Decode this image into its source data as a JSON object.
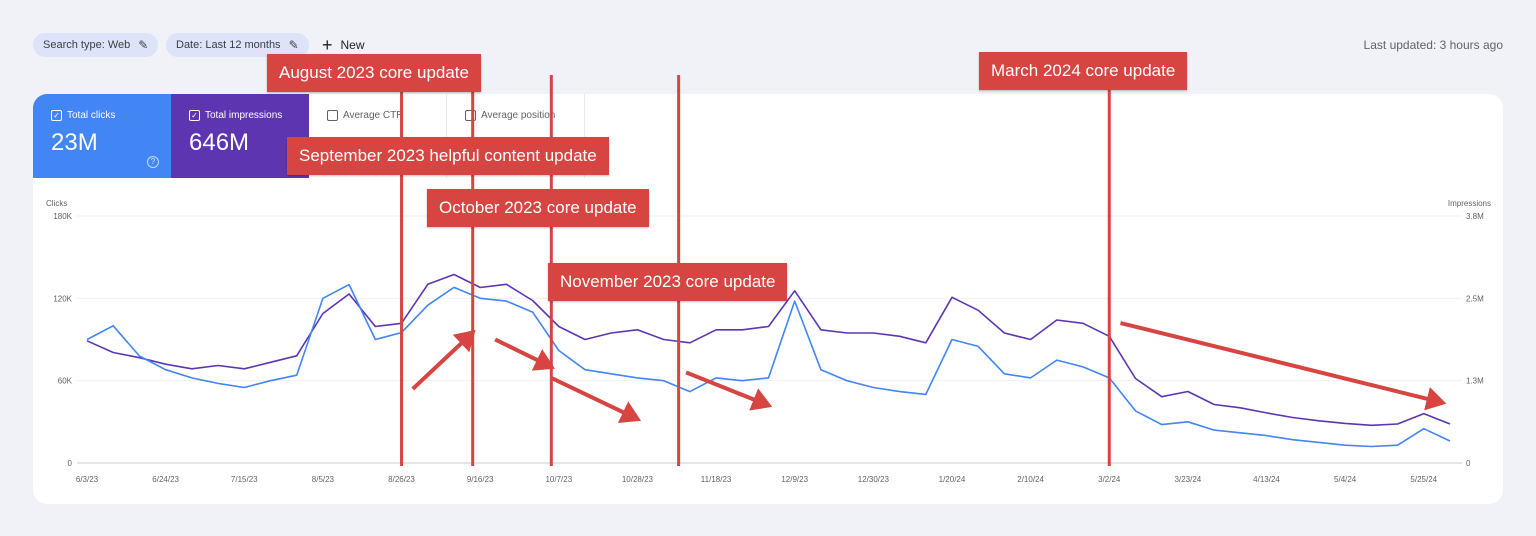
{
  "filters": {
    "search_type": "Search type: Web",
    "date": "Date: Last 12 months",
    "new_label": "New"
  },
  "last_updated": "Last updated: 3 hours ago",
  "metrics": {
    "clicks": {
      "label": "Total clicks",
      "value": "23M",
      "checked": true
    },
    "impressions": {
      "label": "Total impressions",
      "value": "646M",
      "checked": true
    },
    "ctr": {
      "label": "Average CTR",
      "checked": false
    },
    "position": {
      "label": "Average position",
      "checked": false
    }
  },
  "colors": {
    "clicks": "#4285f4",
    "impressions": "#5e35b1",
    "annotation": "#d64541"
  },
  "annotations": [
    {
      "label": "August 2023 core update",
      "date": "8/26/23"
    },
    {
      "label": "September 2023 helpful content update",
      "date": "9/14/23"
    },
    {
      "label": "October 2023 core update",
      "date": "10/5/23"
    },
    {
      "label": "November 2023 core update",
      "date": "11/8/23"
    },
    {
      "label": "March 2024 core update",
      "date": "3/2/24"
    }
  ],
  "chart_data": {
    "type": "line",
    "x_start": "6/3/23",
    "x_end": "6/1/24",
    "xlabel": "",
    "x_ticks": [
      "6/3/23",
      "6/24/23",
      "7/15/23",
      "8/5/23",
      "8/26/23",
      "9/16/23",
      "10/7/23",
      "10/28/23",
      "11/18/23",
      "12/9/23",
      "12/30/23",
      "1/20/24",
      "2/10/24",
      "3/2/24",
      "3/23/24",
      "4/13/24",
      "5/4/24",
      "5/25/24"
    ],
    "y_left": {
      "label": "Clicks",
      "ticks": [
        "0",
        "60K",
        "120K",
        "180K"
      ],
      "ylim": [
        0,
        180000
      ]
    },
    "y_right": {
      "label": "Impressions",
      "ticks": [
        "0",
        "1.3M",
        "2.5M",
        "3.8M"
      ],
      "ylim": [
        0,
        3800000
      ]
    },
    "grid": "horizontal",
    "series": [
      {
        "name": "Impressions",
        "axis": "right",
        "points": [
          [
            "6/3/23",
            1880000
          ],
          [
            "6/10/23",
            1700000
          ],
          [
            "6/17/23",
            1620000
          ],
          [
            "6/24/23",
            1520000
          ],
          [
            "7/1/23",
            1450000
          ],
          [
            "7/8/23",
            1500000
          ],
          [
            "7/15/23",
            1450000
          ],
          [
            "7/22/23",
            1550000
          ],
          [
            "7/29/23",
            1650000
          ],
          [
            "8/5/23",
            2300000
          ],
          [
            "8/12/23",
            2600000
          ],
          [
            "8/19/23",
            2100000
          ],
          [
            "8/26/23",
            2150000
          ],
          [
            "9/2/23",
            2750000
          ],
          [
            "9/9/23",
            2900000
          ],
          [
            "9/16/23",
            2700000
          ],
          [
            "9/23/23",
            2750000
          ],
          [
            "9/30/23",
            2500000
          ],
          [
            "10/7/23",
            2100000
          ],
          [
            "10/14/23",
            1900000
          ],
          [
            "10/21/23",
            2000000
          ],
          [
            "10/28/23",
            2050000
          ],
          [
            "11/4/23",
            1900000
          ],
          [
            "11/11/23",
            1850000
          ],
          [
            "11/18/23",
            2050000
          ],
          [
            "11/25/23",
            2050000
          ],
          [
            "12/2/23",
            2100000
          ],
          [
            "12/9/23",
            2650000
          ],
          [
            "12/16/23",
            2050000
          ],
          [
            "12/23/23",
            2000000
          ],
          [
            "12/30/23",
            2000000
          ],
          [
            "1/6/24",
            1950000
          ],
          [
            "1/13/24",
            1850000
          ],
          [
            "1/20/24",
            2550000
          ],
          [
            "1/27/24",
            2350000
          ],
          [
            "2/3/24",
            2000000
          ],
          [
            "2/10/24",
            1900000
          ],
          [
            "2/17/24",
            2200000
          ],
          [
            "2/24/24",
            2150000
          ],
          [
            "3/2/24",
            1950000
          ],
          [
            "3/9/24",
            1300000
          ],
          [
            "3/16/24",
            1020000
          ],
          [
            "3/23/24",
            1100000
          ],
          [
            "3/30/24",
            900000
          ],
          [
            "4/6/24",
            850000
          ],
          [
            "4/13/24",
            770000
          ],
          [
            "4/20/24",
            700000
          ],
          [
            "4/27/24",
            650000
          ],
          [
            "5/4/24",
            610000
          ],
          [
            "5/11/24",
            580000
          ],
          [
            "5/18/24",
            600000
          ],
          [
            "5/25/24",
            760000
          ],
          [
            "6/1/24",
            600000
          ]
        ]
      },
      {
        "name": "Clicks",
        "axis": "left",
        "points": [
          [
            "6/3/23",
            90000
          ],
          [
            "6/10/23",
            100000
          ],
          [
            "6/17/23",
            78000
          ],
          [
            "6/24/23",
            68000
          ],
          [
            "7/1/23",
            62000
          ],
          [
            "7/8/23",
            58000
          ],
          [
            "7/15/23",
            55000
          ],
          [
            "7/22/23",
            60000
          ],
          [
            "7/29/23",
            64000
          ],
          [
            "8/5/23",
            120000
          ],
          [
            "8/12/23",
            130000
          ],
          [
            "8/19/23",
            90000
          ],
          [
            "8/26/23",
            95000
          ],
          [
            "9/2/23",
            115000
          ],
          [
            "9/9/23",
            128000
          ],
          [
            "9/16/23",
            120000
          ],
          [
            "9/23/23",
            118000
          ],
          [
            "9/30/23",
            110000
          ],
          [
            "10/7/23",
            82000
          ],
          [
            "10/14/23",
            68000
          ],
          [
            "10/21/23",
            65000
          ],
          [
            "10/28/23",
            62000
          ],
          [
            "11/4/23",
            60000
          ],
          [
            "11/11/23",
            52000
          ],
          [
            "11/18/23",
            62000
          ],
          [
            "11/25/23",
            60000
          ],
          [
            "12/2/23",
            62000
          ],
          [
            "12/9/23",
            118000
          ],
          [
            "12/16/23",
            68000
          ],
          [
            "12/23/23",
            60000
          ],
          [
            "12/30/23",
            55000
          ],
          [
            "1/6/24",
            52000
          ],
          [
            "1/13/24",
            50000
          ],
          [
            "1/20/24",
            90000
          ],
          [
            "1/27/24",
            85000
          ],
          [
            "2/3/24",
            65000
          ],
          [
            "2/10/24",
            62000
          ],
          [
            "2/17/24",
            75000
          ],
          [
            "2/24/24",
            70000
          ],
          [
            "3/2/24",
            62000
          ],
          [
            "3/9/24",
            38000
          ],
          [
            "3/16/24",
            28000
          ],
          [
            "3/23/24",
            30000
          ],
          [
            "3/30/24",
            24000
          ],
          [
            "4/6/24",
            22000
          ],
          [
            "4/13/24",
            20000
          ],
          [
            "4/20/24",
            17000
          ],
          [
            "4/27/24",
            15000
          ],
          [
            "5/4/24",
            13000
          ],
          [
            "5/11/24",
            12000
          ],
          [
            "5/18/24",
            13000
          ],
          [
            "5/25/24",
            25000
          ],
          [
            "6/1/24",
            16000
          ]
        ]
      }
    ],
    "trend_arrows": [
      {
        "from": [
          "8/29/23",
          54000
        ],
        "to": [
          "9/14/23",
          95000
        ]
      },
      {
        "from": [
          "9/20/23",
          90000
        ],
        "to": [
          "10/5/23",
          70000
        ]
      },
      {
        "from": [
          "10/5/23",
          62000
        ],
        "to": [
          "10/28/23",
          32000
        ]
      },
      {
        "from": [
          "11/10/23",
          66000
        ],
        "to": [
          "12/2/23",
          42000
        ]
      },
      {
        "from": [
          "3/5/24",
          102000
        ],
        "to": [
          "5/30/24",
          44000
        ]
      }
    ]
  }
}
